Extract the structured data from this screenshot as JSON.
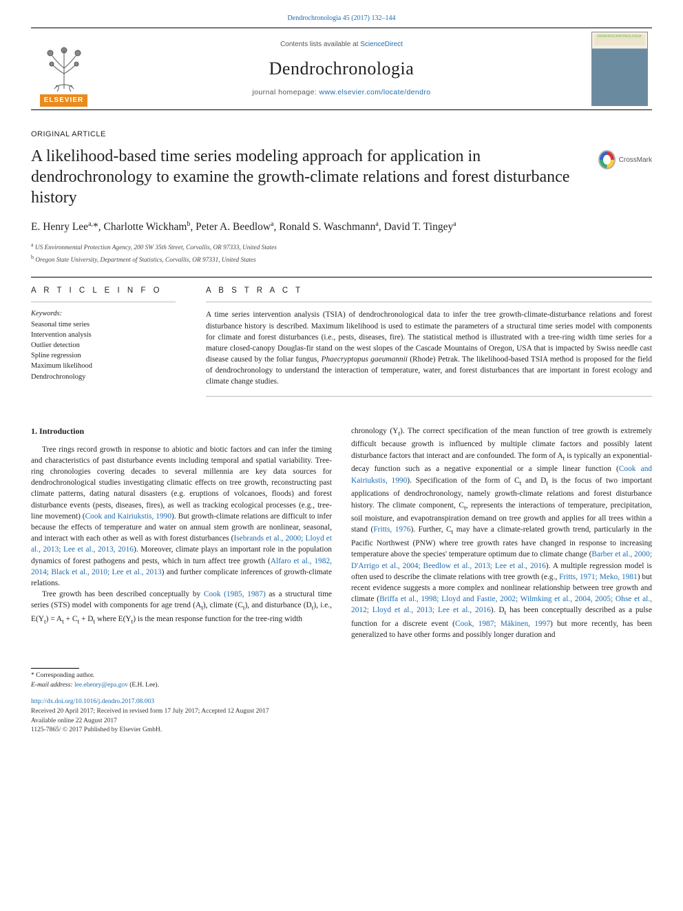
{
  "top_citation": "Dendrochronologia 45 (2017) 132–144",
  "header": {
    "contents_prefix": "Contents lists available at ",
    "contents_link": "ScienceDirect",
    "journal": "Dendrochronologia",
    "homepage_prefix": "journal homepage: ",
    "homepage_link": "www.elsevier.com/locate/dendro",
    "publisher_word": "ELSEVIER",
    "cover_word": "DENDROCHRONOLOGIA"
  },
  "article_type": "ORIGINAL ARTICLE",
  "title": "A likelihood-based time series modeling approach for application in dendrochronology to examine the growth-climate relations and forest disturbance history",
  "crossmark_label": "CrossMark",
  "authors_html": "E. Henry Lee<sup>a,</sup>*, Charlotte Wickham<sup>b</sup>, Peter A. Beedlow<sup>a</sup>, Ronald S. Waschmann<sup>a</sup>, David T. Tingey<sup>a</sup>",
  "affiliations": {
    "a": "US Environmental Protection Agency, 200 SW 35th Street, Corvallis, OR 97333, United States",
    "b": "Oregon State University, Department of Statistics, Corvallis, OR 97331, United States"
  },
  "info_head": "A R T I C L E  I N F O",
  "abs_head": "A B S T R A C T",
  "keywords_label": "Keywords:",
  "keywords": [
    "Seasonal time series",
    "Intervention analysis",
    "Outlier detection",
    "Spline regression",
    "Maximum likelihood",
    "Dendrochronology"
  ],
  "abstract": "A time series intervention analysis (TSIA) of dendrochronological data to infer the tree growth-climate-disturbance relations and forest disturbance history is described. Maximum likelihood is used to estimate the parameters of a structural time series model with components for climate and forest disturbances (i.e., pests, diseases, fire). The statistical method is illustrated with a tree-ring width time series for a mature closed-canopy Douglas-fir stand on the west slopes of the Cascade Mountains of Oregon, USA that is impacted by Swiss needle cast disease caused by the foliar fungus, <em>Phaecryptopus gaeumannii</em> (Rhode) Petrak. The likelihood-based TSIA method is proposed for the field of dendrochronology to understand the interaction of temperature, water, and forest disturbances that are important in forest ecology and climate change studies.",
  "body": {
    "heading": "1. Introduction",
    "p1": "Tree rings record growth in response to abiotic and biotic factors and can infer the timing and characteristics of past disturbance events including temporal and spatial variability. Tree-ring chronologies covering decades to several millennia are key data sources for dendrochronological studies investigating climatic effects on tree growth, reconstructing past climate patterns, dating natural disasters (e.g. eruptions of volcanoes, floods) and forest disturbance events (pests, diseases, fires), as well as tracking ecological processes (e.g., tree-line movement) (<a>Cook and Kairiukstis, 1990</a>). But growth-climate relations are difficult to infer because the effects of temperature and water on annual stem growth are nonlinear, seasonal, and interact with each other as well as with forest disturbances (<a>Isebrands et al., 2000; Lloyd et al., 2013; Lee et al., 2013, 2016</a>). Moreover, climate plays an important role in the population dynamics of forest pathogens and pests, which in turn affect tree growth (<a>Alfaro et al., 1982, 2014; Black et al., 2010; Lee et al., 2013</a>) and further complicate inferences of growth-climate relations.",
    "p2": "Tree growth has been described conceptually by <a>Cook (1985, 1987)</a> as a structural time series (STS) model with components for age trend (A<sub>t</sub>), climate (C<sub>t</sub>), and disturbance (D<sub>t</sub>), i.e., E(Y<sub>t</sub>) = A<sub>t</sub> + C<sub>t</sub> + D<sub>t</sub> where E(Y<sub>t</sub>) is the mean response function for the tree-ring width",
    "p3": "chronology (Y<sub>t</sub>). The correct specification of the mean function of tree growth is extremely difficult because growth is influenced by multiple climate factors and possibly latent disturbance factors that interact and are confounded. The form of A<sub>t</sub> is typically an exponential-decay function such as a negative exponential or a simple linear function (<a>Cook and Kairiukstis, 1990</a>). Specification of the form of C<sub>t</sub> and D<sub>t</sub> is the focus of two important applications of dendrochronology, namely growth-climate relations and forest disturbance history. The climate component, C<sub>t</sub>, represents the interactions of temperature, precipitation, soil moisture, and evapotranspiration demand on tree growth and applies for all trees within a stand (<a>Fritts, 1976</a>). Further, C<sub>t</sub> may have a climate-related growth trend, particularly in the Pacific Northwest (PNW) where tree growth rates have changed in response to increasing temperature above the species' temperature optimum due to climate change (<a>Barber et al., 2000; D'Arrigo et al., 2004; Beedlow et al., 2013; Lee et al., 2016</a>). A multiple regression model is often used to describe the climate relations with tree growth (e.g., <a>Fritts, 1971; Meko, 1981</a>) but recent evidence suggests a more complex and nonlinear relationship between tree growth and climate (<a>Briffa et al., 1998; Lloyd and Fastie, 2002; Wilmking et al., 2004, 2005; Ohse et al., 2012; Lloyd et al., 2013; Lee et al., 2016</a>). D<sub>t</sub> has been conceptually described as a pulse function for a discrete event (<a>Cook, 1987; Mäkinen, 1997</a>) but more recently, has been generalized to have other forms and possibly longer duration and"
  },
  "footer": {
    "corr": "* Corresponding author.",
    "email_label": "E-mail address: ",
    "email": "lee.ehenry@epa.gov",
    "email_tail": " (E.H. Lee).",
    "doi": "http://dx.doi.org/10.1016/j.dendro.2017.08.003",
    "received": "Received 20 April 2017; Received in revised form 17 July 2017; Accepted 12 August 2017",
    "available": "Available online 22 August 2017",
    "copyright": "1125-7865/ © 2017 Published by Elsevier GmbH."
  },
  "colors": {
    "link": "#1a6bb0",
    "elsevier_orange": "#ea8a1a"
  }
}
